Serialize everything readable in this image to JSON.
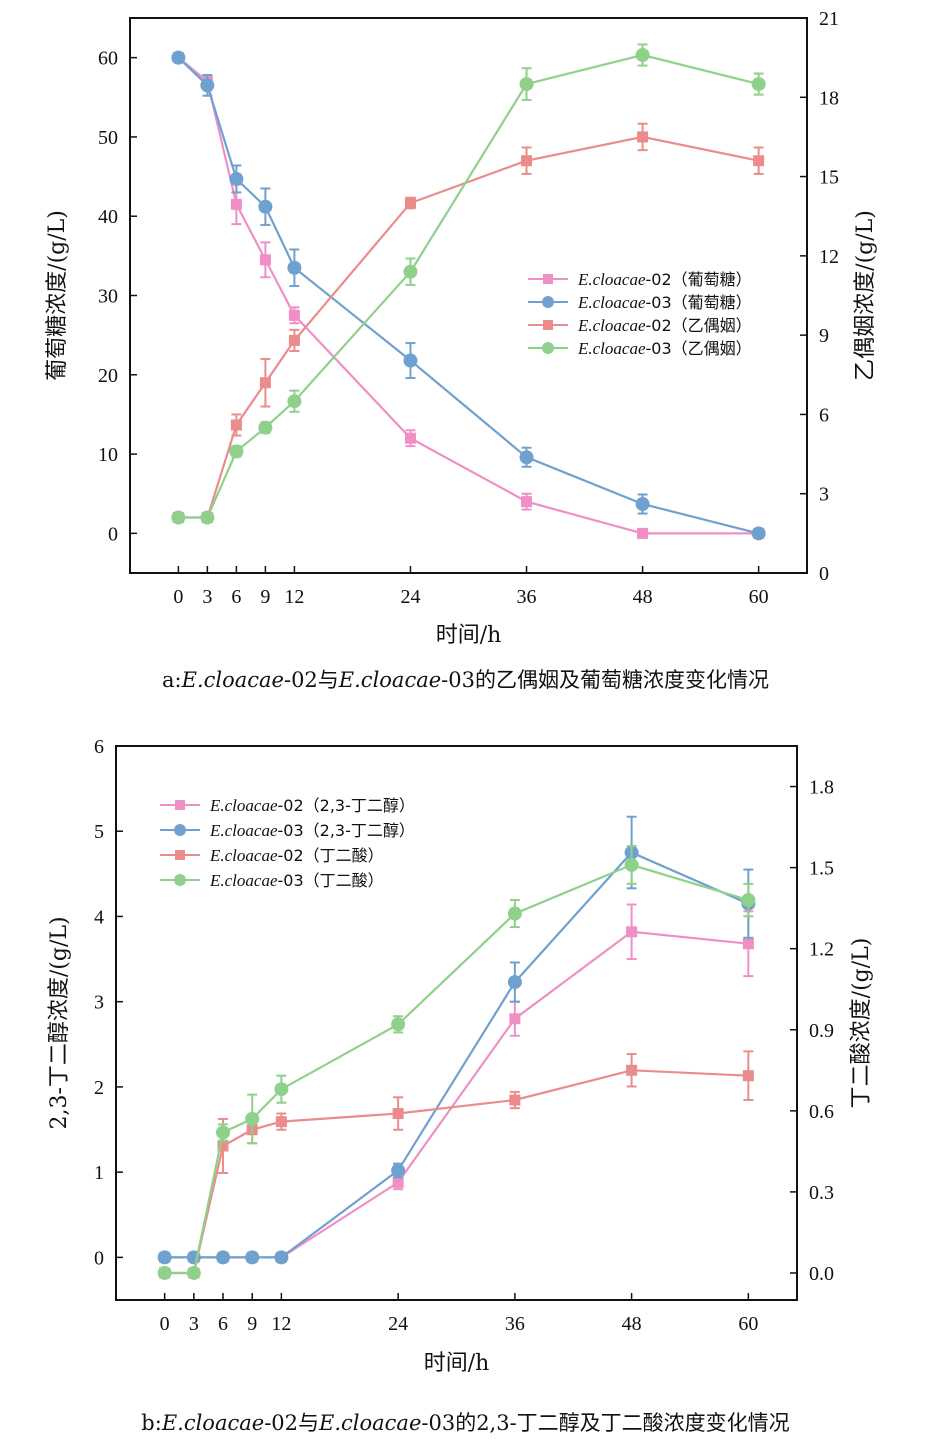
{
  "colors": {
    "pink": "#ef8fc6",
    "blue": "#6fa1d0",
    "salmon": "#eb8c8c",
    "green": "#8fd08b"
  },
  "chart_data": [
    {
      "type": "line",
      "panel": "a",
      "caption": {
        "prefix": "a:",
        "s1": "E.cloacae",
        "m1": "-02与",
        "s2": "E.cloacae",
        "m2": "-03的乙偶姻及葡萄糖浓度变化情况"
      },
      "xlabel": "时间/h",
      "ylabel": "葡萄糖浓度/(g/L)",
      "y2label": "乙偶姻浓度/(g/L)",
      "x": [
        0,
        3,
        6,
        9,
        12,
        24,
        36,
        48,
        60
      ],
      "xticks": [
        "0",
        "3",
        "6",
        "9",
        "12",
        "24",
        "36",
        "48",
        "60"
      ],
      "xlim": [
        -5,
        65
      ],
      "ylim": [
        -5,
        65
      ],
      "y2lim": [
        0,
        21
      ],
      "yticks": [
        "0",
        "10",
        "20",
        "30",
        "40",
        "50",
        "60"
      ],
      "y2ticks": [
        "0",
        "3",
        "6",
        "9",
        "12",
        "15",
        "18",
        "21"
      ],
      "legend": "center-right",
      "series": [
        {
          "name_i": "E.cloacae",
          "name_r": "-02（葡萄糖）",
          "color_key": "pink",
          "marker": "square",
          "axis": "left",
          "values": [
            60,
            57,
            41.5,
            34.5,
            27.5,
            12,
            4,
            0,
            0
          ],
          "err": [
            0,
            0.8,
            2.5,
            2.2,
            1.0,
            1.0,
            1.0,
            0,
            0
          ]
        },
        {
          "name_i": "E.cloacae",
          "name_r": "-03（葡萄糖）",
          "color_key": "blue",
          "marker": "circle",
          "axis": "left",
          "values": [
            60,
            56.5,
            44.7,
            41.2,
            33.5,
            21.8,
            9.6,
            3.7,
            0
          ],
          "err": [
            0,
            1.3,
            1.7,
            2.3,
            2.3,
            2.2,
            1.2,
            1.2,
            0
          ]
        },
        {
          "name_i": "E.cloacae",
          "name_r": "-02（乙偶姻）",
          "color_key": "salmon",
          "marker": "square",
          "axis": "right",
          "values": [
            2.1,
            2.1,
            5.6,
            7.2,
            8.8,
            14.0,
            15.6,
            16.5,
            15.6
          ],
          "err": [
            0,
            0,
            0.4,
            0.9,
            0.4,
            0.2,
            0.5,
            0.5,
            0.5
          ]
        },
        {
          "name_i": "E.cloacae",
          "name_r": "-03（乙偶姻）",
          "color_key": "green",
          "marker": "circle",
          "axis": "right",
          "values": [
            2.1,
            2.1,
            4.6,
            5.5,
            6.5,
            11.4,
            18.5,
            19.6,
            18.5
          ],
          "err": [
            0,
            0,
            0.2,
            0.2,
            0.4,
            0.5,
            0.6,
            0.4,
            0.4
          ]
        }
      ]
    },
    {
      "type": "line",
      "panel": "b",
      "caption": {
        "prefix": "b:",
        "s1": "E.cloacae",
        "m1": "-02与",
        "s2": "E.cloacae",
        "m2": "-03的2,3-丁二醇及丁二酸浓度变化情况"
      },
      "xlabel": "时间/h",
      "ylabel": "2,3-丁二醇浓度/(g/L)",
      "y2label": "丁二酸浓度/(g/L)",
      "x": [
        0,
        3,
        6,
        9,
        12,
        24,
        36,
        48,
        60
      ],
      "xticks": [
        "0",
        "3",
        "6",
        "9",
        "12",
        "24",
        "36",
        "48",
        "60"
      ],
      "xlim": [
        -5,
        65
      ],
      "ylim": [
        -0.5,
        6
      ],
      "y2lim": [
        -0.1,
        1.95
      ],
      "yticks": [
        "0",
        "1",
        "2",
        "3",
        "4",
        "5",
        "6"
      ],
      "y2ticks": [
        "0.0",
        "0.3",
        "0.6",
        "0.9",
        "1.2",
        "1.5",
        "1.8"
      ],
      "legend": "top-left",
      "series": [
        {
          "name_i": "E.cloacae",
          "name_r": "-02（2,3-丁二醇）",
          "color_key": "pink",
          "marker": "square",
          "axis": "left",
          "values": [
            0,
            0,
            0,
            0,
            0,
            0.88,
            2.8,
            3.82,
            3.68
          ],
          "err": [
            0,
            0,
            0,
            0,
            0,
            0.08,
            0.2,
            0.32,
            0.38
          ]
        },
        {
          "name_i": "E.cloacae",
          "name_r": "-03（2,3-丁二醇）",
          "color_key": "blue",
          "marker": "circle",
          "axis": "left",
          "values": [
            0,
            0,
            0,
            0,
            0,
            1.02,
            3.23,
            4.75,
            4.15
          ],
          "err": [
            0,
            0,
            0,
            0,
            0,
            0.08,
            0.23,
            0.42,
            0.4
          ]
        },
        {
          "name_i": "E.cloacae",
          "name_r": "-02（丁二酸）",
          "color_key": "salmon",
          "marker": "square",
          "axis": "right",
          "values": [
            0.0,
            0.0,
            0.47,
            0.53,
            0.56,
            0.59,
            0.64,
            0.75,
            0.73
          ],
          "err": [
            0,
            0,
            0.1,
            0.05,
            0.03,
            0.06,
            0.03,
            0.06,
            0.09
          ]
        },
        {
          "name_i": "E.cloacae",
          "name_r": "-03（丁二酸）",
          "color_key": "green",
          "marker": "circle",
          "axis": "right",
          "values": [
            0.0,
            0.0,
            0.52,
            0.57,
            0.68,
            0.92,
            1.33,
            1.51,
            1.38
          ],
          "err": [
            0,
            0,
            0.03,
            0.09,
            0.05,
            0.03,
            0.05,
            0.07,
            0.06
          ]
        }
      ]
    }
  ]
}
